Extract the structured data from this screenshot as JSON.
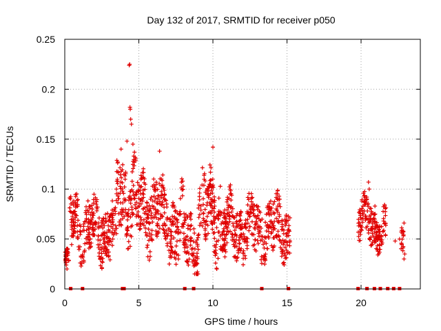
{
  "chart_data": {
    "type": "scatter",
    "title": "Day 132 of 2017, SRMTID for receiver p050",
    "xlabel": "GPS time / hours",
    "ylabel": "SRMTID / TECUs",
    "xlim": [
      0,
      24
    ],
    "ylim": [
      0,
      0.25
    ],
    "xticks": [
      0,
      5,
      10,
      15,
      20
    ],
    "xtick_labels": [
      "0",
      "5",
      "10",
      "15",
      "20"
    ],
    "yticks": [
      0,
      0.05,
      0.1,
      0.15,
      0.2,
      0.25
    ],
    "ytick_labels": [
      "0",
      "0.05",
      "0.1",
      "0.15",
      "0.2",
      "0.25"
    ],
    "grid": true,
    "marker": "+",
    "color": "#e00000",
    "segments": [
      {
        "start": 0.0,
        "end": 0.3,
        "base": 0.03,
        "amp": 0.008
      },
      {
        "start": 0.3,
        "end": 1.2,
        "base": 0.065,
        "amp": 0.03
      },
      {
        "start": 1.2,
        "end": 3.5,
        "base": 0.06,
        "amp": 0.03
      },
      {
        "start": 3.5,
        "end": 4.0,
        "base": 0.095,
        "amp": 0.04
      },
      {
        "start": 4.0,
        "end": 4.8,
        "base": 0.09,
        "amp": 0.04
      },
      {
        "start": 4.8,
        "end": 6.5,
        "base": 0.08,
        "amp": 0.035
      },
      {
        "start": 6.5,
        "end": 8.0,
        "base": 0.065,
        "amp": 0.035
      },
      {
        "start": 8.0,
        "end": 9.0,
        "base": 0.05,
        "amp": 0.03
      },
      {
        "start": 9.0,
        "end": 10.5,
        "base": 0.075,
        "amp": 0.04
      },
      {
        "start": 10.5,
        "end": 13.5,
        "base": 0.06,
        "amp": 0.03
      },
      {
        "start": 13.5,
        "end": 15.2,
        "base": 0.06,
        "amp": 0.03
      },
      {
        "start": 19.8,
        "end": 20.3,
        "base": 0.07,
        "amp": 0.02
      },
      {
        "start": 20.3,
        "end": 21.0,
        "base": 0.065,
        "amp": 0.025
      },
      {
        "start": 21.0,
        "end": 21.7,
        "base": 0.06,
        "amp": 0.02
      },
      {
        "start": 22.7,
        "end": 22.9,
        "base": 0.05,
        "amp": 0.02
      }
    ],
    "highlights": [
      {
        "x": 4.35,
        "y": 0.224
      },
      {
        "x": 4.38,
        "y": 0.225
      },
      {
        "x": 4.4,
        "y": 0.182
      },
      {
        "x": 4.42,
        "y": 0.18
      },
      {
        "x": 4.45,
        "y": 0.17
      },
      {
        "x": 4.5,
        "y": 0.165
      },
      {
        "x": 4.2,
        "y": 0.148
      },
      {
        "x": 4.6,
        "y": 0.145
      },
      {
        "x": 3.8,
        "y": 0.14
      },
      {
        "x": 10.0,
        "y": 0.142
      },
      {
        "x": 6.4,
        "y": 0.138
      },
      {
        "x": 20.5,
        "y": 0.107
      },
      {
        "x": 20.55,
        "y": 0.1
      },
      {
        "x": 22.9,
        "y": 0.066
      },
      {
        "x": 22.95,
        "y": 0.035
      },
      {
        "x": 22.9,
        "y": 0.03
      },
      {
        "x": 22.3,
        "y": 0.048
      },
      {
        "x": 22.6,
        "y": 0.05
      },
      {
        "x": 0.05,
        "y": 0.028
      },
      {
        "x": 0.1,
        "y": 0.024
      },
      {
        "x": 0.15,
        "y": 0.02
      }
    ],
    "gap_markers_x": [
      0.4,
      1.2,
      3.9,
      4.0,
      8.1,
      8.7,
      13.3,
      15.1,
      19.8,
      20.4,
      20.9,
      21.3,
      21.8,
      22.2,
      22.6
    ]
  }
}
